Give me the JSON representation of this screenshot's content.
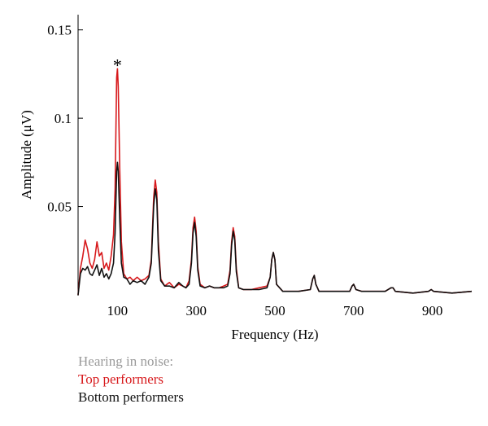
{
  "chart_data": {
    "type": "line",
    "xlabel": "Frequency (Hz)",
    "ylabel": "Amplitude (μV)",
    "xlim": [
      0,
      1000
    ],
    "ylim": [
      0,
      0.16
    ],
    "xticks": [
      100,
      300,
      500,
      700,
      900
    ],
    "yticks": [
      {
        "value": 0.05,
        "label": "0.05"
      },
      {
        "value": 0.1,
        "label": "0.1"
      },
      {
        "value": 0.15,
        "label": "0.15"
      }
    ],
    "grid": false,
    "annotation": {
      "text": "*",
      "x": 100,
      "y": 0.134
    },
    "legend": {
      "title": "Hearing in noise:",
      "entries": [
        {
          "label": "Top performers",
          "color": "#d7191c"
        },
        {
          "label": "Bottom performers",
          "color": "#111111"
        }
      ],
      "placement": "below-left",
      "title_color": "#9a9a9a"
    },
    "series": [
      {
        "name": "Top performers",
        "color": "#d7191c",
        "points": [
          [
            0,
            0
          ],
          [
            6,
            0.015
          ],
          [
            12,
            0.022
          ],
          [
            18,
            0.031
          ],
          [
            24,
            0.026
          ],
          [
            30,
            0.018
          ],
          [
            36,
            0.015
          ],
          [
            42,
            0.02
          ],
          [
            48,
            0.03
          ],
          [
            54,
            0.022
          ],
          [
            60,
            0.024
          ],
          [
            66,
            0.015
          ],
          [
            72,
            0.018
          ],
          [
            78,
            0.014
          ],
          [
            84,
            0.022
          ],
          [
            90,
            0.034
          ],
          [
            94,
            0.06
          ],
          [
            98,
            0.123
          ],
          [
            100,
            0.128
          ],
          [
            102,
            0.118
          ],
          [
            106,
            0.07
          ],
          [
            110,
            0.03
          ],
          [
            116,
            0.012
          ],
          [
            124,
            0.009
          ],
          [
            132,
            0.01
          ],
          [
            140,
            0.008
          ],
          [
            150,
            0.01
          ],
          [
            160,
            0.008
          ],
          [
            170,
            0.009
          ],
          [
            180,
            0.011
          ],
          [
            186,
            0.02
          ],
          [
            192,
            0.055
          ],
          [
            196,
            0.065
          ],
          [
            200,
            0.058
          ],
          [
            204,
            0.03
          ],
          [
            210,
            0.009
          ],
          [
            220,
            0.005
          ],
          [
            232,
            0.007
          ],
          [
            244,
            0.004
          ],
          [
            256,
            0.006
          ],
          [
            266,
            0.005
          ],
          [
            274,
            0.004
          ],
          [
            282,
            0.008
          ],
          [
            288,
            0.02
          ],
          [
            292,
            0.038
          ],
          [
            296,
            0.044
          ],
          [
            300,
            0.036
          ],
          [
            304,
            0.016
          ],
          [
            310,
            0.006
          ],
          [
            322,
            0.004
          ],
          [
            334,
            0.005
          ],
          [
            346,
            0.004
          ],
          [
            358,
            0.004
          ],
          [
            370,
            0.005
          ],
          [
            380,
            0.006
          ],
          [
            386,
            0.014
          ],
          [
            390,
            0.03
          ],
          [
            394,
            0.038
          ],
          [
            398,
            0.033
          ],
          [
            402,
            0.015
          ],
          [
            408,
            0.004
          ],
          [
            420,
            0.003
          ],
          [
            440,
            0.003
          ],
          [
            460,
            0.004
          ],
          [
            480,
            0.005
          ],
          [
            488,
            0.01
          ],
          [
            492,
            0.02
          ],
          [
            496,
            0.024
          ],
          [
            500,
            0.02
          ],
          [
            504,
            0.006
          ],
          [
            520,
            0.002
          ],
          [
            560,
            0.002
          ],
          [
            590,
            0.003
          ],
          [
            596,
            0.009
          ],
          [
            600,
            0.011
          ],
          [
            604,
            0.006
          ],
          [
            612,
            0.002
          ],
          [
            650,
            0.002
          ],
          [
            690,
            0.002
          ],
          [
            696,
            0.005
          ],
          [
            700,
            0.006
          ],
          [
            706,
            0.003
          ],
          [
            720,
            0.002
          ],
          [
            780,
            0.002
          ],
          [
            795,
            0.004
          ],
          [
            800,
            0.004
          ],
          [
            806,
            0.002
          ],
          [
            850,
            0.001
          ],
          [
            890,
            0.002
          ],
          [
            897,
            0.003
          ],
          [
            903,
            0.002
          ],
          [
            950,
            0.001
          ],
          [
            1000,
            0.002
          ]
        ]
      },
      {
        "name": "Bottom performers",
        "color": "#111111",
        "points": [
          [
            0,
            0
          ],
          [
            6,
            0.012
          ],
          [
            12,
            0.015
          ],
          [
            18,
            0.014
          ],
          [
            24,
            0.016
          ],
          [
            30,
            0.012
          ],
          [
            36,
            0.011
          ],
          [
            42,
            0.014
          ],
          [
            48,
            0.017
          ],
          [
            54,
            0.011
          ],
          [
            60,
            0.015
          ],
          [
            66,
            0.01
          ],
          [
            72,
            0.012
          ],
          [
            78,
            0.009
          ],
          [
            84,
            0.012
          ],
          [
            90,
            0.018
          ],
          [
            94,
            0.035
          ],
          [
            98,
            0.07
          ],
          [
            100,
            0.075
          ],
          [
            102,
            0.07
          ],
          [
            106,
            0.042
          ],
          [
            110,
            0.018
          ],
          [
            116,
            0.01
          ],
          [
            124,
            0.009
          ],
          [
            132,
            0.006
          ],
          [
            140,
            0.008
          ],
          [
            150,
            0.007
          ],
          [
            160,
            0.008
          ],
          [
            170,
            0.006
          ],
          [
            180,
            0.01
          ],
          [
            186,
            0.018
          ],
          [
            192,
            0.05
          ],
          [
            196,
            0.06
          ],
          [
            200,
            0.054
          ],
          [
            204,
            0.025
          ],
          [
            210,
            0.008
          ],
          [
            220,
            0.005
          ],
          [
            232,
            0.005
          ],
          [
            244,
            0.004
          ],
          [
            256,
            0.007
          ],
          [
            266,
            0.005
          ],
          [
            274,
            0.004
          ],
          [
            282,
            0.006
          ],
          [
            288,
            0.018
          ],
          [
            292,
            0.035
          ],
          [
            296,
            0.041
          ],
          [
            300,
            0.033
          ],
          [
            304,
            0.014
          ],
          [
            310,
            0.005
          ],
          [
            322,
            0.004
          ],
          [
            334,
            0.005
          ],
          [
            346,
            0.004
          ],
          [
            358,
            0.004
          ],
          [
            370,
            0.004
          ],
          [
            380,
            0.005
          ],
          [
            386,
            0.012
          ],
          [
            390,
            0.028
          ],
          [
            394,
            0.036
          ],
          [
            398,
            0.031
          ],
          [
            402,
            0.013
          ],
          [
            408,
            0.004
          ],
          [
            420,
            0.003
          ],
          [
            440,
            0.003
          ],
          [
            460,
            0.003
          ],
          [
            480,
            0.004
          ],
          [
            488,
            0.01
          ],
          [
            492,
            0.02
          ],
          [
            496,
            0.024
          ],
          [
            500,
            0.02
          ],
          [
            504,
            0.006
          ],
          [
            520,
            0.002
          ],
          [
            560,
            0.002
          ],
          [
            590,
            0.003
          ],
          [
            596,
            0.009
          ],
          [
            600,
            0.011
          ],
          [
            604,
            0.006
          ],
          [
            612,
            0.002
          ],
          [
            650,
            0.002
          ],
          [
            690,
            0.002
          ],
          [
            696,
            0.005
          ],
          [
            700,
            0.006
          ],
          [
            706,
            0.003
          ],
          [
            720,
            0.002
          ],
          [
            780,
            0.002
          ],
          [
            795,
            0.004
          ],
          [
            800,
            0.004
          ],
          [
            806,
            0.002
          ],
          [
            850,
            0.001
          ],
          [
            890,
            0.002
          ],
          [
            897,
            0.003
          ],
          [
            903,
            0.002
          ],
          [
            950,
            0.001
          ],
          [
            1000,
            0.002
          ]
        ]
      }
    ]
  }
}
